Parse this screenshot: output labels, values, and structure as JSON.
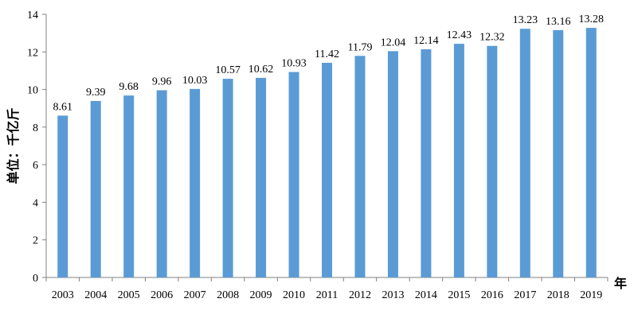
{
  "chart_data": {
    "type": "bar",
    "categories": [
      "2003",
      "2004",
      "2005",
      "2006",
      "2007",
      "2008",
      "2009",
      "2010",
      "2011",
      "2012",
      "2013",
      "2014",
      "2015",
      "2016",
      "2017",
      "2018",
      "2019"
    ],
    "values": [
      8.61,
      9.39,
      9.68,
      9.96,
      10.03,
      10.57,
      10.62,
      10.93,
      11.42,
      11.79,
      12.04,
      12.14,
      12.43,
      12.32,
      13.23,
      13.16,
      13.28
    ],
    "value_labels": [
      "8.61",
      "9.39",
      "9.68",
      "9.96",
      "10.03",
      "10.57",
      "10.62",
      "10.93",
      "11.42",
      "11.79",
      "12.04",
      "12.14",
      "12.43",
      "12.32",
      "13.23",
      "13.16",
      "13.28"
    ],
    "title": "",
    "xlabel": "年",
    "ylabel": "单位：千亿斤",
    "ylim": [
      0,
      14
    ],
    "yticks": [
      "0",
      "2",
      "4",
      "6",
      "8",
      "10",
      "12",
      "14"
    ],
    "grid": false,
    "bar_color": "#5B9BD5",
    "axis_color": "#808080"
  }
}
